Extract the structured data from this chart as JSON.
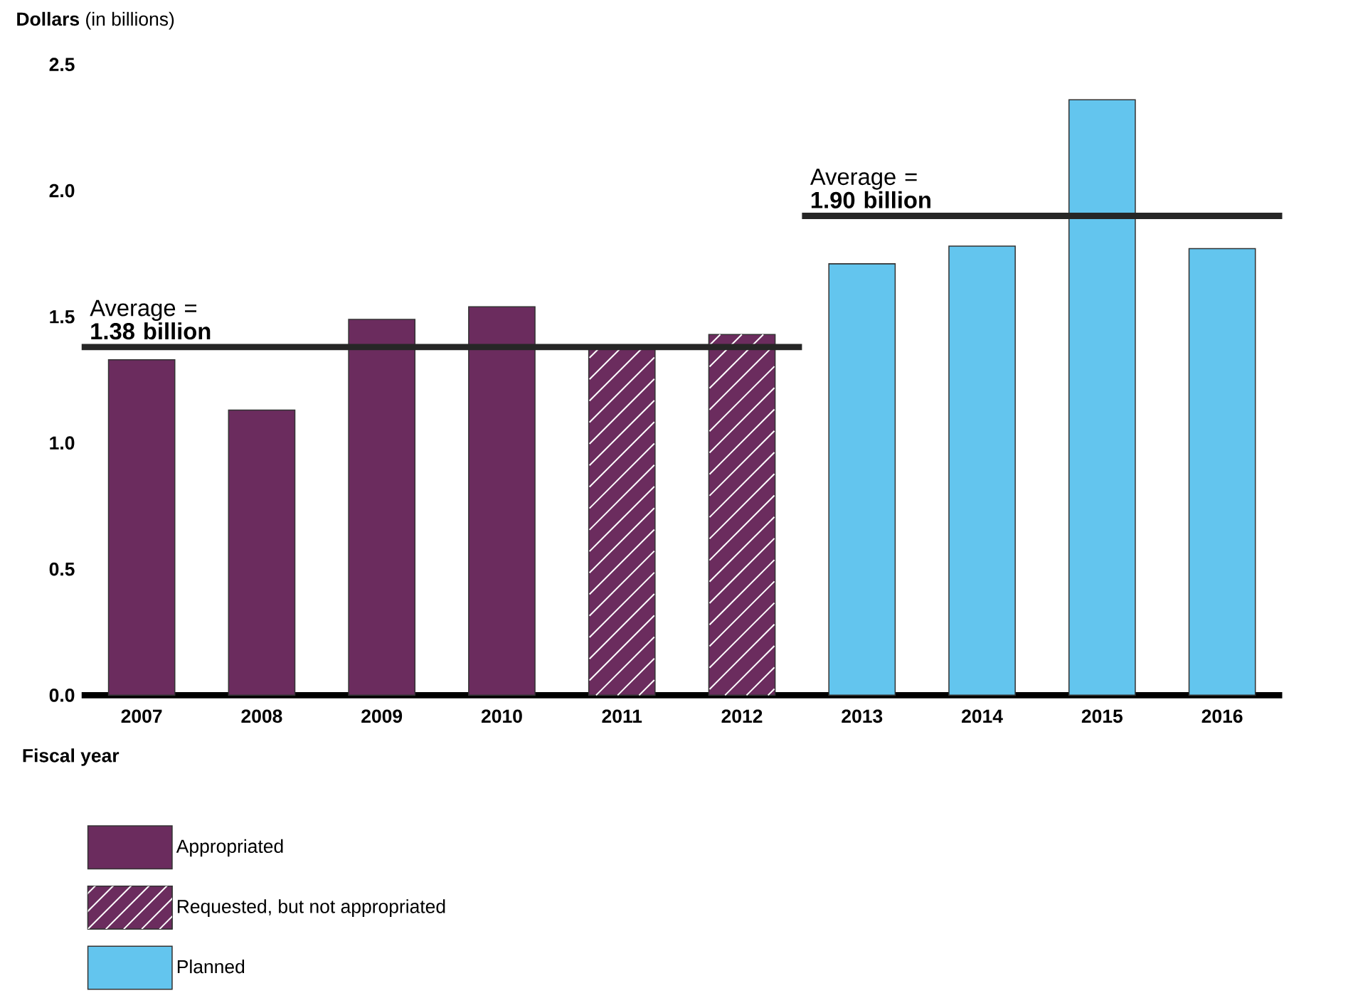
{
  "chart_data": {
    "type": "bar",
    "ylabel": "**Dollars** (in billions)",
    "xlabel": "Fiscal year",
    "categories": [
      "2007",
      "2008",
      "2009",
      "2010",
      "2011",
      "2012",
      "2013",
      "2014",
      "2015",
      "2016"
    ],
    "series": [
      {
        "name": "Appropriated",
        "color": "#6b2c5e",
        "values": [
          1.33,
          1.13,
          1.49,
          1.54,
          null,
          null,
          null,
          null,
          null,
          null
        ]
      },
      {
        "name": "Requested, but not appropriated",
        "color": "#6b2c5e",
        "values": [
          null,
          null,
          null,
          null,
          1.38,
          1.43,
          null,
          null,
          null,
          null
        ]
      },
      {
        "name": "Planned",
        "color": "#63c5ee",
        "values": [
          null,
          null,
          null,
          null,
          null,
          null,
          1.71,
          1.78,
          2.36,
          1.77
        ]
      }
    ],
    "ylim": [
      0,
      2.5
    ],
    "yticks": [
      {
        "value": 0,
        "label": "0.0"
      },
      0.5,
      {
        "value": 1,
        "label": "1.0"
      },
      1.5,
      {
        "value": 2,
        "label": "2.0"
      },
      2.5
    ],
    "ref_lines": [
      {
        "axis": "y",
        "value": 1.38,
        "label": "Average = **1.38 billion**"
      },
      {
        "axis": "y",
        "value": 1.9,
        "label": "Average = **1.90 billion**"
      }
    ],
    "legend": "bottom left",
    "grid": false
  }
}
